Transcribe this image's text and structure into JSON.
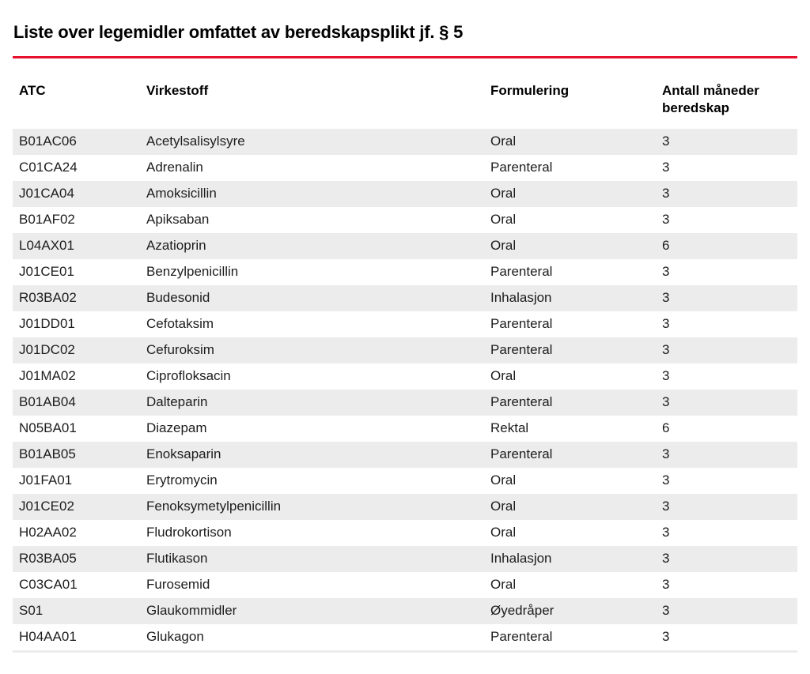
{
  "page": {
    "title": "Liste over legemidler omfattet av beredskapsplikt jf. § 5",
    "colors": {
      "accent_rule": "#e8112d",
      "alt_row_background": "#ececec",
      "text": "#1d1d1d"
    }
  },
  "table": {
    "columns": [
      {
        "key": "atc",
        "label": "ATC"
      },
      {
        "key": "virkestoff",
        "label": "Virkestoff"
      },
      {
        "key": "formulering",
        "label": "Formulering"
      },
      {
        "key": "antall_maneder_beredskap",
        "label": "Antall måneder beredskap"
      }
    ],
    "rows": [
      [
        "B01AC06",
        "Acetylsalisylsyre",
        "Oral",
        "3"
      ],
      [
        "C01CA24",
        "Adrenalin",
        "Parenteral",
        "3"
      ],
      [
        "J01CA04",
        "Amoksicillin",
        "Oral",
        "3"
      ],
      [
        "B01AF02",
        "Apiksaban",
        "Oral",
        "3"
      ],
      [
        "L04AX01",
        "Azatioprin",
        "Oral",
        "6"
      ],
      [
        "J01CE01",
        "Benzylpenicillin",
        "Parenteral",
        "3"
      ],
      [
        "R03BA02",
        "Budesonid",
        "Inhalasjon",
        "3"
      ],
      [
        "J01DD01",
        "Cefotaksim",
        "Parenteral",
        "3"
      ],
      [
        "J01DC02",
        "Cefuroksim",
        "Parenteral",
        "3"
      ],
      [
        "J01MA02",
        "Ciprofloksacin",
        "Oral",
        "3"
      ],
      [
        "B01AB04",
        "Dalteparin",
        "Parenteral",
        "3"
      ],
      [
        "N05BA01",
        "Diazepam",
        "Rektal",
        "6"
      ],
      [
        "B01AB05",
        "Enoksaparin",
        "Parenteral",
        "3"
      ],
      [
        "J01FA01",
        "Erytromycin",
        "Oral",
        "3"
      ],
      [
        "J01CE02",
        "Fenoksymetylpenicillin",
        "Oral",
        "3"
      ],
      [
        "H02AA02",
        "Fludrokortison",
        "Oral",
        "3"
      ],
      [
        "R03BA05",
        "Flutikason",
        "Inhalasjon",
        "3"
      ],
      [
        "C03CA01",
        "Furosemid",
        "Oral",
        "3"
      ],
      [
        "S01",
        "Glaukommidler",
        "Øyedråper",
        "3"
      ],
      [
        "H04AA01",
        "Glukagon",
        "Parenteral",
        "3"
      ]
    ]
  }
}
